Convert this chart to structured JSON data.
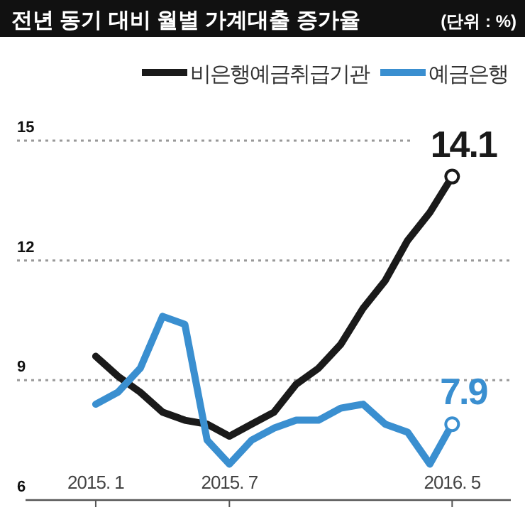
{
  "chart_data": {
    "type": "line",
    "title": "전년 동기 대비 월별 가계대출 증가율",
    "annotations": [
      "(단위 : %)",
      {
        "text": "14.1",
        "x": "2016-05",
        "y": 14.1
      },
      {
        "text": "7.9",
        "x": "2016-05",
        "y": 7.9
      }
    ],
    "x": [
      "2015-01",
      "2015-02",
      "2015-03",
      "2015-04",
      "2015-05",
      "2015-06",
      "2015-07",
      "2015-08",
      "2015-09",
      "2015-10",
      "2015-11",
      "2015-12",
      "2016-01",
      "2016-02",
      "2016-03",
      "2016-04",
      "2016-05"
    ],
    "series": [
      {
        "name": "비은행예금취급기관",
        "color": "#1a1a1a",
        "values": [
          9.6,
          9.1,
          8.7,
          8.2,
          8.0,
          7.9,
          7.6,
          7.9,
          8.2,
          8.9,
          9.3,
          9.9,
          10.8,
          11.5,
          12.5,
          13.2,
          14.1
        ]
      },
      {
        "name": "예금은행",
        "color": "#3a8fd0",
        "values": [
          8.4,
          8.7,
          9.3,
          10.6,
          10.4,
          7.5,
          6.9,
          7.5,
          7.8,
          8.0,
          8.0,
          8.3,
          8.4,
          7.9,
          7.7,
          6.9,
          7.9
        ]
      }
    ],
    "xlim": [
      "2014-09-15",
      "2016-07-20"
    ],
    "xticks": [
      {
        "value": "2015-01",
        "label": "2015. 1"
      },
      {
        "value": "2015-07",
        "label": "2015. 7"
      },
      {
        "value": "2016-05",
        "label": "2016. 5"
      }
    ],
    "ylim": [
      6,
      15
    ],
    "yticks": [
      6,
      9,
      12,
      15
    ],
    "grid": "y",
    "legend": "top right"
  }
}
